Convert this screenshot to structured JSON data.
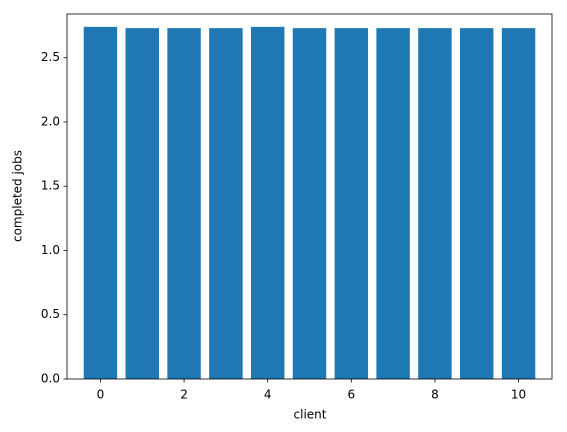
{
  "chart_data": {
    "type": "bar",
    "x_label": "client",
    "y_label": "completed jobs",
    "x": [
      0,
      1,
      2,
      3,
      4,
      5,
      6,
      7,
      8,
      9,
      10
    ],
    "values": [
      2.74,
      2.73,
      2.73,
      2.73,
      2.74,
      2.73,
      2.73,
      2.73,
      2.73,
      2.73,
      2.73
    ],
    "color": "#1f77b4",
    "xlim": [
      -0.8,
      10.8
    ],
    "xticks": [
      0,
      2,
      4,
      6,
      8,
      10
    ],
    "ylim": [
      0,
      2.84
    ],
    "yticks": [
      {
        "value": 0,
        "label": "0.0"
      },
      0.5,
      {
        "value": 1,
        "label": "1.0"
      },
      1.5,
      {
        "value": 2,
        "label": "2.0"
      },
      2.5
    ]
  }
}
